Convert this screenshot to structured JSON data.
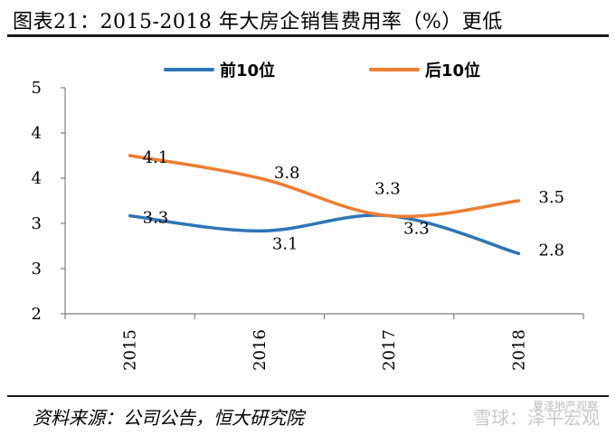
{
  "title": "图表21：2015-2018 年大房企销售费用率（%）更低",
  "source": "资料来源：公司公告，恒大研究院",
  "watermark": "雪球：泽平宏观",
  "watermark_small": "夏泽地产观察",
  "chart_data": {
    "type": "line",
    "categories": [
      "2015",
      "2016",
      "2017",
      "2018"
    ],
    "ytick_labels": [
      "2",
      "3",
      "3",
      "4",
      "4",
      "5"
    ],
    "ylim": [
      2,
      5
    ],
    "series": [
      {
        "name": "前10位",
        "color": "#2E75B6",
        "values": [
          3.3,
          3.1,
          3.3,
          2.8
        ],
        "labels": [
          "3.3",
          "3.1",
          "3.3",
          "2.8"
        ]
      },
      {
        "name": "后10位",
        "color": "#ED7D31",
        "values": [
          4.1,
          3.8,
          3.3,
          3.5
        ],
        "labels": [
          "4.1",
          "3.8",
          "3.3",
          "3.5"
        ]
      }
    ],
    "grid": false,
    "legend": "top"
  }
}
